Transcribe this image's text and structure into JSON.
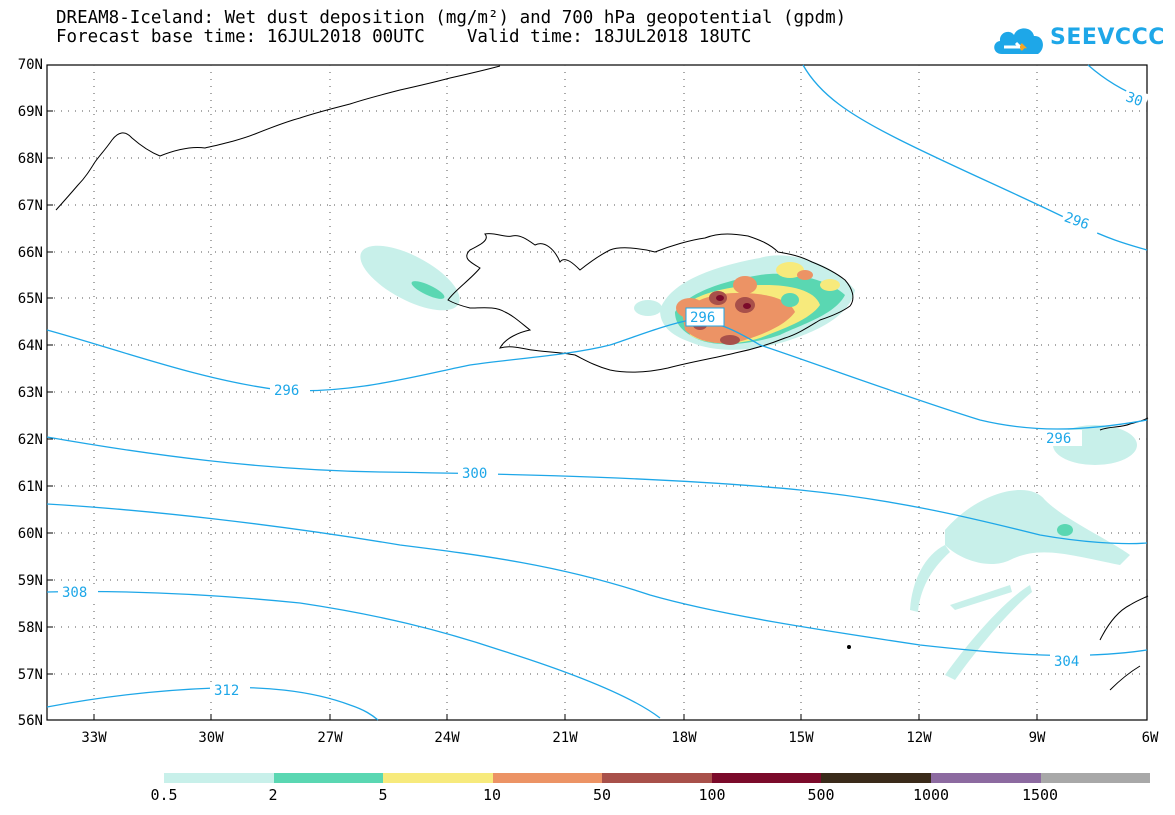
{
  "header": {
    "title_line1": "DREAM8-Iceland: Wet dust deposition (mg/m²) and 700 hPa geopotential (gpdm)",
    "title_line2": "Forecast base time: 16JUL2018 00UTC    Valid time: 18JUL2018 18UTC",
    "logo_text": "SEEVCCC"
  },
  "map": {
    "lat_labels": [
      "70N",
      "69N",
      "68N",
      "67N",
      "66N",
      "65N",
      "64N",
      "63N",
      "62N",
      "61N",
      "60N",
      "59N",
      "58N",
      "57N",
      "56N"
    ],
    "lon_labels": [
      "33W",
      "30W",
      "27W",
      "24W",
      "21W",
      "18W",
      "15W",
      "12W",
      "9W",
      "6W"
    ],
    "contour_labels": [
      "296",
      "296",
      "296",
      "296",
      "300",
      "304",
      "308",
      "312",
      "30"
    ],
    "contour_color": "#1ea7e8"
  },
  "legend": {
    "colors": [
      "#c8f0ea",
      "#5ad7b2",
      "#f7ea7c",
      "#ec9365",
      "#a8504a",
      "#7b0a2a",
      "#3a2a1a",
      "#8c6aa0",
      "#a8a8a8"
    ],
    "labels": [
      "0.5",
      "2",
      "5",
      "10",
      "50",
      "100",
      "500",
      "1000",
      "1500"
    ]
  }
}
